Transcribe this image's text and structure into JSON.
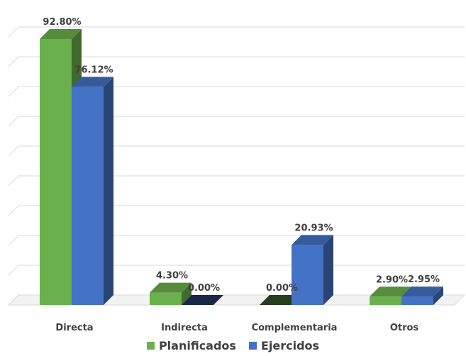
{
  "chart_data": {
    "type": "bar",
    "categories": [
      "Directa",
      "Indirecta",
      "Complementaria",
      "Otros"
    ],
    "series": [
      {
        "name": "Planificados",
        "values": [
          92.8,
          4.3,
          0.0,
          2.9
        ],
        "labels": [
          "92.80%",
          "4.30%",
          "0.00%",
          "2.90%"
        ],
        "color": "#6ab04c"
      },
      {
        "name": "Ejercidos",
        "values": [
          76.12,
          0.0,
          20.93,
          2.95
        ],
        "labels": [
          "76.12%",
          "0.00%",
          "20.93%",
          "2.95%"
        ],
        "color": "#4472c4"
      }
    ],
    "ylim": [
      0,
      100
    ],
    "grid": true,
    "legend_position": "bottom",
    "three_d": true
  }
}
